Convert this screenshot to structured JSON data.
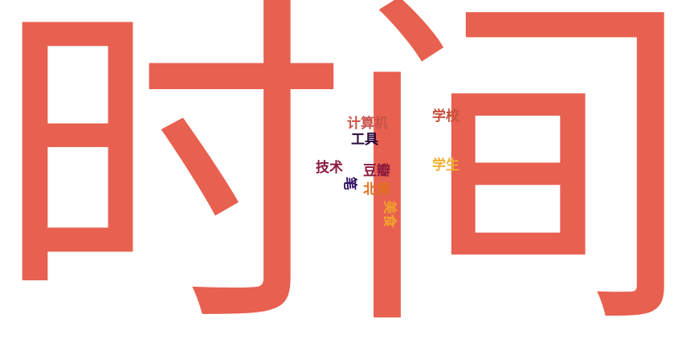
{
  "words": {
    "shi": {
      "text": "时",
      "color": "#e8604f"
    },
    "jian": {
      "text": "间",
      "color": "#e8604f"
    },
    "jisuanji": {
      "text": "计算机",
      "color": "#c8534a"
    },
    "gongju": {
      "text": "工具",
      "color": "#2a0a3f"
    },
    "xuexiao": {
      "text": "学校",
      "color": "#c8503c"
    },
    "jishu": {
      "text": "技术",
      "color": "#8a1a3f"
    },
    "douban": {
      "text": "豆瓣",
      "color": "#8a1a3f"
    },
    "xuesheng": {
      "text": "学生",
      "color": "#f0b030"
    },
    "beimei": {
      "text": "北美",
      "color": "#e07020"
    },
    "bi": {
      "text": "笔",
      "color": "#2a0a5f"
    },
    "meishi": {
      "text": "美食",
      "color": "#f0a030"
    }
  }
}
